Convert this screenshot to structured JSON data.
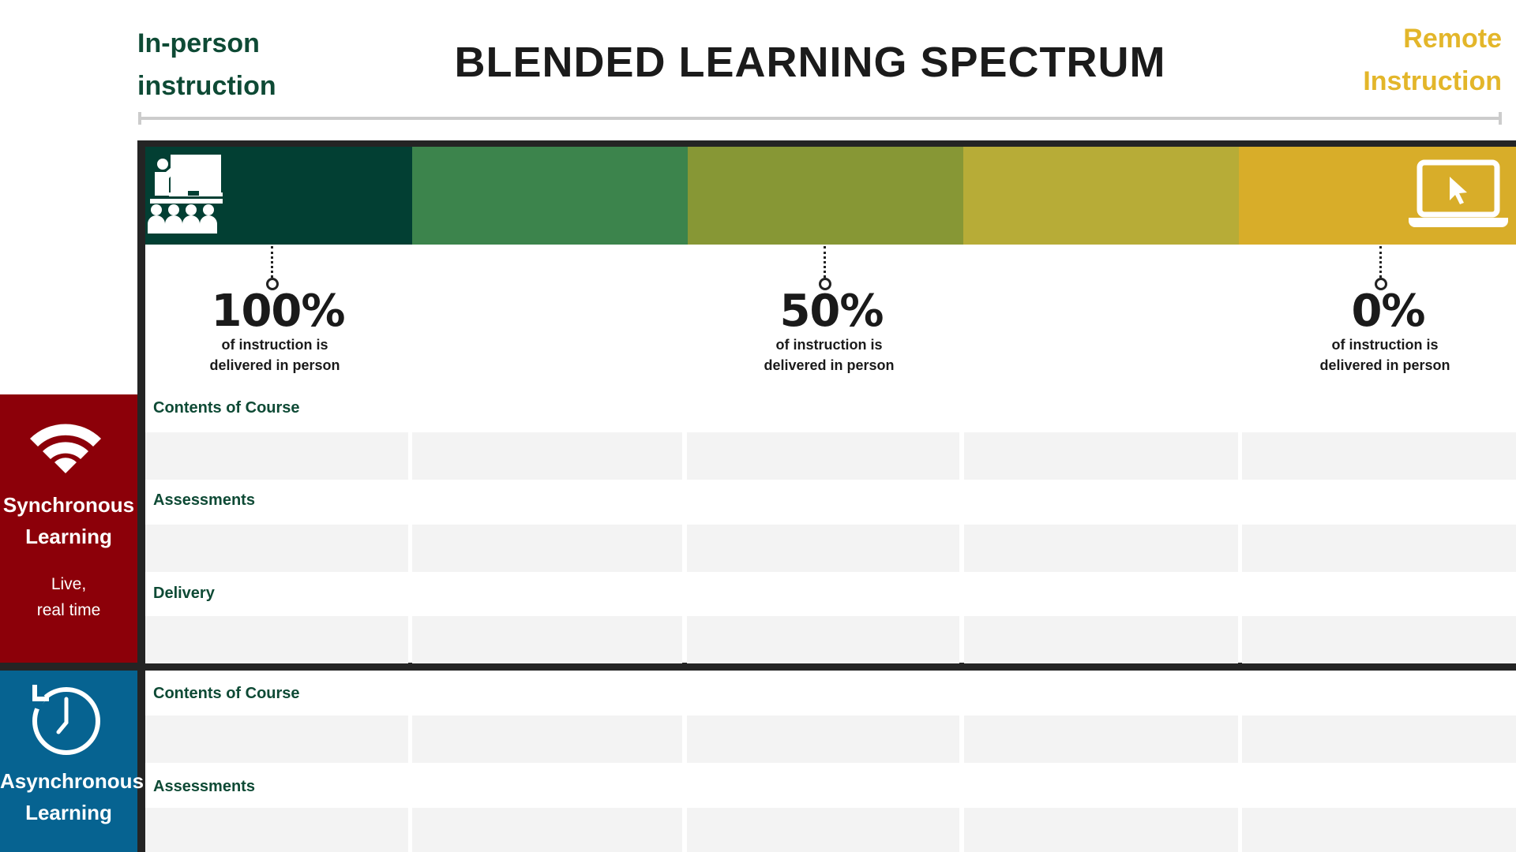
{
  "header": {
    "left_label": [
      "In-person",
      "instruction"
    ],
    "right_label": [
      "Remote",
      "Instruction"
    ],
    "title": "BLENDED LEARNING SPECTRUM"
  },
  "spectrum": {
    "colors": [
      "#023f33",
      "#3c844c",
      "#879735",
      "#b7ac37",
      "#d8ad29"
    ],
    "left_icon": "classroom-teacher-icon",
    "right_icon": "laptop-cursor-icon"
  },
  "markers": [
    {
      "value": "100%",
      "caption": [
        "of instruction is",
        "delivered in person"
      ]
    },
    {
      "value": "50%",
      "caption": [
        "of instruction is",
        "delivered in person"
      ]
    },
    {
      "value": "0%",
      "caption": [
        "of instruction is",
        "delivered in person"
      ]
    }
  ],
  "sync": {
    "title": [
      "Synchronous",
      "Learning"
    ],
    "subtitle": [
      "Live,",
      "real time"
    ],
    "icon": "wifi-icon",
    "color": "#8c0009",
    "rows": [
      "Contents of Course",
      "Assessments",
      "Delivery"
    ]
  },
  "async": {
    "title": [
      "Asynchronous",
      "Learning"
    ],
    "icon": "clock-icon",
    "color": "#066391",
    "rows": [
      "Contents of Course",
      "Assessments"
    ]
  }
}
